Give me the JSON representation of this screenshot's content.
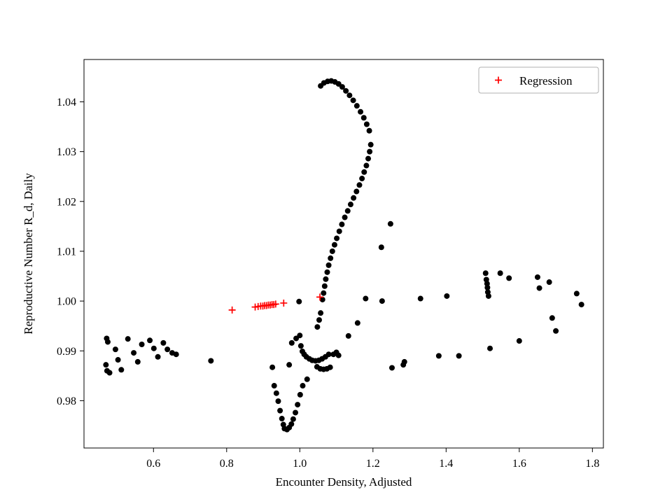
{
  "figure": {
    "background": "#ffffff"
  },
  "chart_data": {
    "type": "scatter",
    "title": "",
    "xlabel": "Encounter Density, Adjusted",
    "ylabel": "Reproductive Number R_d, Daily",
    "xlim": [
      0.41,
      1.83
    ],
    "ylim": [
      0.9705,
      1.0485
    ],
    "xticks": {
      "values": [
        0.6,
        0.8,
        1.0,
        1.2,
        1.4,
        1.6,
        1.8
      ],
      "labels": [
        "0.6",
        "0.8",
        "1.0",
        "1.2",
        "1.4",
        "1.6",
        "1.8"
      ]
    },
    "yticks": {
      "values": [
        0.98,
        0.99,
        1.0,
        1.01,
        1.02,
        1.03,
        1.04
      ],
      "labels": [
        "0.98",
        "0.99",
        "1.00",
        "1.01",
        "1.02",
        "1.03",
        "1.04"
      ]
    },
    "grid": false,
    "legend": {
      "visible": true,
      "position": "upper right",
      "entries": [
        {
          "label": "Regression",
          "marker": "plus",
          "color": "#ff0000"
        }
      ]
    },
    "series": [
      {
        "name": "data-points",
        "marker": "circle",
        "color": "#000000",
        "points": [
          [
            0.472,
            0.9925
          ],
          [
            0.475,
            0.9918
          ],
          [
            0.47,
            0.9872
          ],
          [
            0.473,
            0.986
          ],
          [
            0.48,
            0.9856
          ],
          [
            0.496,
            0.9903
          ],
          [
            0.503,
            0.9882
          ],
          [
            0.512,
            0.9862
          ],
          [
            0.53,
            0.9924
          ],
          [
            0.546,
            0.9896
          ],
          [
            0.557,
            0.9878
          ],
          [
            0.568,
            0.9913
          ],
          [
            0.59,
            0.9921
          ],
          [
            0.601,
            0.9905
          ],
          [
            0.612,
            0.9888
          ],
          [
            0.627,
            0.9916
          ],
          [
            0.638,
            0.9903
          ],
          [
            0.651,
            0.9896
          ],
          [
            0.662,
            0.9893
          ],
          [
            0.757,
            0.988
          ],
          [
            0.925,
            0.9867
          ],
          [
            0.93,
            0.983
          ],
          [
            0.936,
            0.9815
          ],
          [
            0.941,
            0.9799
          ],
          [
            0.946,
            0.978
          ],
          [
            0.951,
            0.9764
          ],
          [
            0.955,
            0.9752
          ],
          [
            0.958,
            0.9744
          ],
          [
            0.965,
            0.9742
          ],
          [
            0.971,
            0.9746
          ],
          [
            0.977,
            0.9753
          ],
          [
            0.982,
            0.9763
          ],
          [
            0.988,
            0.9776
          ],
          [
            0.994,
            0.9792
          ],
          [
            1.001,
            0.9812
          ],
          [
            1.008,
            0.983
          ],
          [
            1.02,
            0.9843
          ],
          [
            0.971,
            0.9872
          ],
          [
            0.978,
            0.9916
          ],
          [
            0.99,
            0.9925
          ],
          [
            1.0,
            0.9931
          ],
          [
            1.003,
            0.991
          ],
          [
            1.007,
            0.9899
          ],
          [
            1.012,
            0.9893
          ],
          [
            1.018,
            0.9888
          ],
          [
            1.026,
            0.9884
          ],
          [
            1.034,
            0.9881
          ],
          [
            1.043,
            0.988
          ],
          [
            1.052,
            0.9881
          ],
          [
            1.061,
            0.9884
          ],
          [
            1.07,
            0.9888
          ],
          [
            1.079,
            0.9893
          ],
          [
            1.047,
            0.9868
          ],
          [
            1.056,
            0.9864
          ],
          [
            1.065,
            0.9863
          ],
          [
            1.074,
            0.9864
          ],
          [
            1.083,
            0.9867
          ],
          [
            1.092,
            0.9893
          ],
          [
            1.1,
            0.9897
          ],
          [
            1.106,
            0.9891
          ],
          [
            0.998,
            0.9999
          ],
          [
            1.048,
            0.9948
          ],
          [
            1.053,
            0.9962
          ],
          [
            1.057,
            0.9976
          ],
          [
            1.062,
            1.0003
          ],
          [
            1.065,
            1.0016
          ],
          [
            1.068,
            1.003
          ],
          [
            1.071,
            1.0044
          ],
          [
            1.075,
            1.0058
          ],
          [
            1.079,
            1.0072
          ],
          [
            1.084,
            1.0086
          ],
          [
            1.089,
            1.01
          ],
          [
            1.095,
            1.0113
          ],
          [
            1.101,
            1.0126
          ],
          [
            1.108,
            1.014
          ],
          [
            1.115,
            1.0154
          ],
          [
            1.123,
            1.0168
          ],
          [
            1.131,
            1.0181
          ],
          [
            1.139,
            1.0194
          ],
          [
            1.147,
            1.0207
          ],
          [
            1.155,
            1.022
          ],
          [
            1.163,
            1.0233
          ],
          [
            1.17,
            1.0246
          ],
          [
            1.176,
            1.0259
          ],
          [
            1.182,
            1.0272
          ],
          [
            1.187,
            1.0286
          ],
          [
            1.191,
            1.03
          ],
          [
            1.194,
            1.0314
          ],
          [
            1.19,
            1.0342
          ],
          [
            1.183,
            1.0355
          ],
          [
            1.175,
            1.0368
          ],
          [
            1.166,
            1.038
          ],
          [
            1.156,
            1.0392
          ],
          [
            1.146,
            1.0403
          ],
          [
            1.136,
            1.0413
          ],
          [
            1.126,
            1.0422
          ],
          [
            1.116,
            1.043
          ],
          [
            1.106,
            1.0436
          ],
          [
            1.096,
            1.044
          ],
          [
            1.086,
            1.0442
          ],
          [
            1.076,
            1.0441
          ],
          [
            1.066,
            1.0438
          ],
          [
            1.057,
            1.0432
          ],
          [
            1.248,
            1.0155
          ],
          [
            1.223,
            1.0108
          ],
          [
            1.133,
            0.993
          ],
          [
            1.158,
            0.9956
          ],
          [
            1.18,
            1.0005
          ],
          [
            1.225,
            1.0
          ],
          [
            1.33,
            1.0005
          ],
          [
            1.402,
            1.001
          ],
          [
            1.435,
            0.989
          ],
          [
            1.508,
            1.0056
          ],
          [
            1.51,
            1.0043
          ],
          [
            1.512,
            1.0035
          ],
          [
            1.513,
            1.0027
          ],
          [
            1.514,
            1.0018
          ],
          [
            1.516,
            1.001
          ],
          [
            1.548,
            1.0056
          ],
          [
            1.572,
            1.0046
          ],
          [
            1.65,
            1.0048
          ],
          [
            1.655,
            1.0026
          ],
          [
            1.682,
            1.0038
          ],
          [
            1.69,
            0.9966
          ],
          [
            1.7,
            0.994
          ],
          [
            1.757,
            1.0015
          ],
          [
            1.77,
            0.9993
          ],
          [
            1.252,
            0.9866
          ],
          [
            1.283,
            0.9872
          ],
          [
            1.286,
            0.9878
          ],
          [
            1.38,
            0.989
          ],
          [
            1.52,
            0.9905
          ],
          [
            1.6,
            0.992
          ]
        ]
      },
      {
        "name": "Regression",
        "marker": "plus",
        "color": "#ff0000",
        "points": [
          [
            0.815,
            0.9982
          ],
          [
            0.878,
            0.9988
          ],
          [
            0.886,
            0.9989
          ],
          [
            0.893,
            0.999
          ],
          [
            0.899,
            0.999
          ],
          [
            0.904,
            0.9991
          ],
          [
            0.909,
            0.9991
          ],
          [
            0.914,
            0.9992
          ],
          [
            0.919,
            0.9992
          ],
          [
            0.924,
            0.9993
          ],
          [
            0.929,
            0.9993
          ],
          [
            0.934,
            0.9994
          ],
          [
            0.956,
            0.9996
          ],
          [
            1.055,
            1.0008
          ]
        ]
      }
    ]
  }
}
